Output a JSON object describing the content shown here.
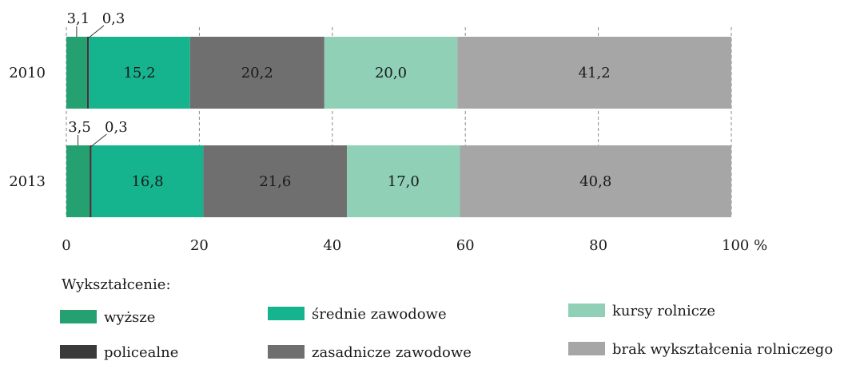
{
  "chart_data": {
    "type": "bar",
    "orientation": "horizontal",
    "stacked": true,
    "categories": [
      "2010",
      "2013"
    ],
    "series": [
      {
        "name": "wyższe",
        "values": [
          3.1,
          3.5
        ],
        "color": "#25a070",
        "show_value": false
      },
      {
        "name": "policealne",
        "values": [
          0.3,
          0.3
        ],
        "color": "#3a3a3a",
        "show_value": false
      },
      {
        "name": "średnie zawodowe",
        "values": [
          15.2,
          16.8
        ],
        "color": "#16b48e",
        "show_value": true
      },
      {
        "name": "zasadnicze zawodowe",
        "values": [
          20.2,
          21.6
        ],
        "color": "#6f6f6f",
        "show_value": true
      },
      {
        "name": "kursy rolnicze",
        "values": [
          20.0,
          17.0
        ],
        "color": "#8fd0b6",
        "show_value": true
      },
      {
        "name": "brak wykształcenia rolniczego",
        "values": [
          41.2,
          40.8
        ],
        "color": "#a6a6a6",
        "show_value": true
      }
    ],
    "value_labels": [
      [
        "3,1",
        "0,3",
        "15,2",
        "20,2",
        "20,0",
        "41,2"
      ],
      [
        "3,5",
        "0,3",
        "16,8",
        "21,6",
        "17,0",
        "40,8"
      ]
    ],
    "xlim": [
      0,
      100
    ],
    "x_ticks": [
      0,
      20,
      40,
      60,
      80,
      100
    ],
    "x_tick_labels": [
      "0",
      "20",
      "40",
      "60",
      "80",
      "100 %"
    ],
    "grid": "dashed vertical",
    "legend_title": "Wykształcenie:",
    "legend_position": "bottom"
  }
}
